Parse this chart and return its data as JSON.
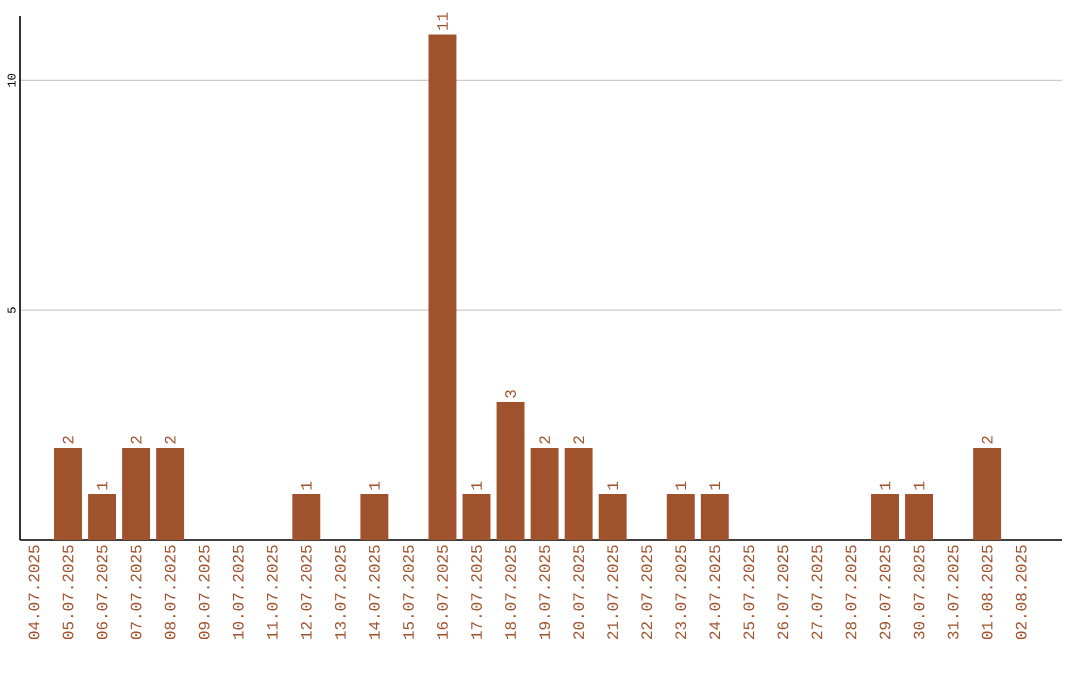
{
  "chart_data": {
    "type": "bar",
    "categories": [
      "04.07.2025",
      "05.07.2025",
      "06.07.2025",
      "07.07.2025",
      "08.07.2025",
      "09.07.2025",
      "10.07.2025",
      "11.07.2025",
      "12.07.2025",
      "13.07.2025",
      "14.07.2025",
      "15.07.2025",
      "16.07.2025",
      "17.07.2025",
      "18.07.2025",
      "19.07.2025",
      "20.07.2025",
      "21.07.2025",
      "22.07.2025",
      "23.07.2025",
      "24.07.2025",
      "25.07.2025",
      "26.07.2025",
      "27.07.2025",
      "28.07.2025",
      "29.07.2025",
      "30.07.2025",
      "31.07.2025",
      "01.08.2025",
      "02.08.2025"
    ],
    "values": [
      0,
      2,
      1,
      2,
      2,
      0,
      0,
      0,
      1,
      0,
      1,
      0,
      11,
      1,
      3,
      2,
      2,
      1,
      0,
      1,
      1,
      0,
      0,
      0,
      0,
      1,
      1,
      0,
      2,
      0
    ],
    "value_labels": [
      null,
      "2",
      "1",
      "2",
      "2",
      null,
      null,
      null,
      "1",
      null,
      "1",
      null,
      "11",
      "1",
      "3",
      "2",
      "2",
      "1",
      null,
      "1",
      "1",
      null,
      null,
      null,
      null,
      "1",
      "1",
      null,
      "2",
      null
    ],
    "color": "#a0522d",
    "ylim": [
      0,
      11.4
    ],
    "yticks": [
      5,
      10
    ],
    "grid": "y"
  }
}
